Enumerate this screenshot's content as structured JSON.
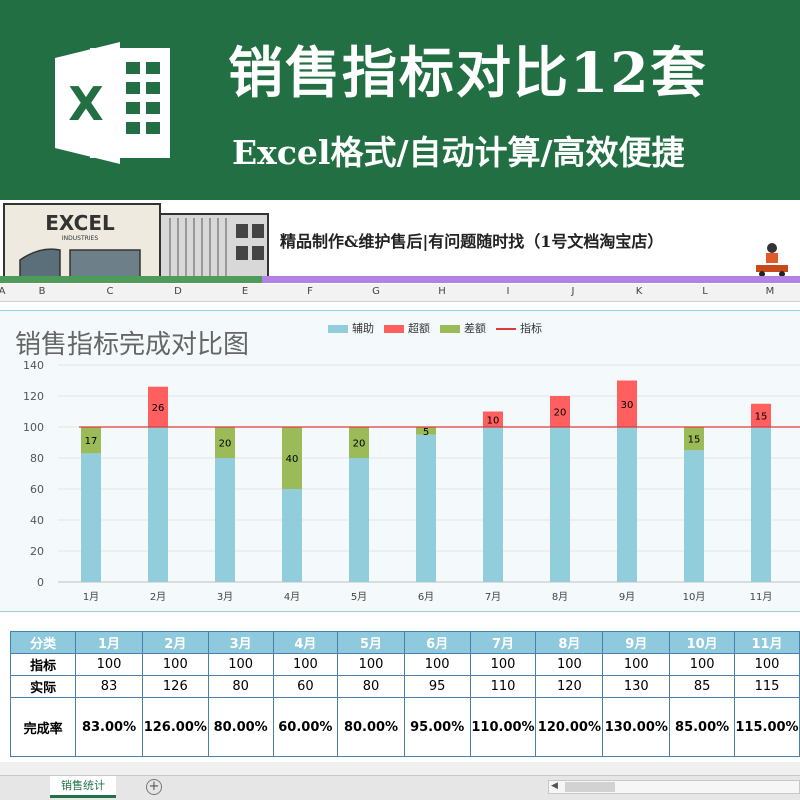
{
  "banner": {
    "title": "销售指标对比12套",
    "subtitle": "Excel格式/自动计算/高效便捷",
    "icon": "excel-logo-icon",
    "bg_color": "#226f43"
  },
  "promo": {
    "logo_text": "EXCEL",
    "logo_subtext": "INDUSTRIES",
    "text": "精品制作&维护售后|有问题随时找（1号文档淘宝店）"
  },
  "column_headers": [
    "A",
    "B",
    "C",
    "D",
    "E",
    "F",
    "G",
    "H",
    "I",
    "J",
    "K",
    "L",
    "M"
  ],
  "chart_data": {
    "type": "bar",
    "title": "销售指标完成对比图",
    "categories": [
      "1月",
      "2月",
      "3月",
      "4月",
      "5月",
      "6月",
      "7月",
      "8月",
      "9月",
      "10月",
      "11月"
    ],
    "series": [
      {
        "name": "辅助",
        "color": "#92cddc",
        "values": [
          83,
          100,
          80,
          60,
          80,
          95,
          100,
          100,
          100,
          85,
          100
        ]
      },
      {
        "name": "超额",
        "color": "#ff5f5f",
        "values": [
          0,
          26,
          0,
          0,
          0,
          0,
          10,
          20,
          30,
          0,
          15
        ]
      },
      {
        "name": "差额",
        "color": "#9bbb59",
        "values": [
          17,
          0,
          20,
          40,
          20,
          5,
          0,
          0,
          0,
          15,
          0
        ]
      },
      {
        "name": "指标",
        "color": "#e03b3b",
        "type": "line",
        "values": [
          100,
          100,
          100,
          100,
          100,
          100,
          100,
          100,
          100,
          100,
          100
        ]
      }
    ],
    "data_labels": [
      "17",
      "26",
      "20",
      "40",
      "20",
      "5",
      "10",
      "20",
      "30",
      "15",
      "15"
    ],
    "yticks": [
      "0",
      "20",
      "40",
      "60",
      "80",
      "100",
      "120",
      "140"
    ],
    "ylim": [
      0,
      140
    ],
    "grid": true,
    "legend": "top"
  },
  "table": {
    "headers": [
      "分类",
      "1月",
      "2月",
      "3月",
      "4月",
      "5月",
      "6月",
      "7月",
      "8月",
      "9月",
      "10月",
      "11月"
    ],
    "rows": [
      {
        "label": "指标",
        "values": [
          "100",
          "100",
          "100",
          "100",
          "100",
          "100",
          "100",
          "100",
          "100",
          "100",
          "100"
        ]
      },
      {
        "label": "实际",
        "values": [
          "83",
          "126",
          "80",
          "60",
          "80",
          "95",
          "110",
          "120",
          "130",
          "85",
          "115"
        ]
      },
      {
        "label": "完成率",
        "values": [
          "83.00%",
          "126.00%",
          "80.00%",
          "60.00%",
          "80.00%",
          "95.00%",
          "110.00%",
          "120.00%",
          "130.00%",
          "85.00%",
          "115.00%"
        ]
      }
    ],
    "header_color": "#8fc9dd"
  },
  "sheet": {
    "tab_label": "销售统计",
    "add_icon": "plus-circle-icon"
  }
}
